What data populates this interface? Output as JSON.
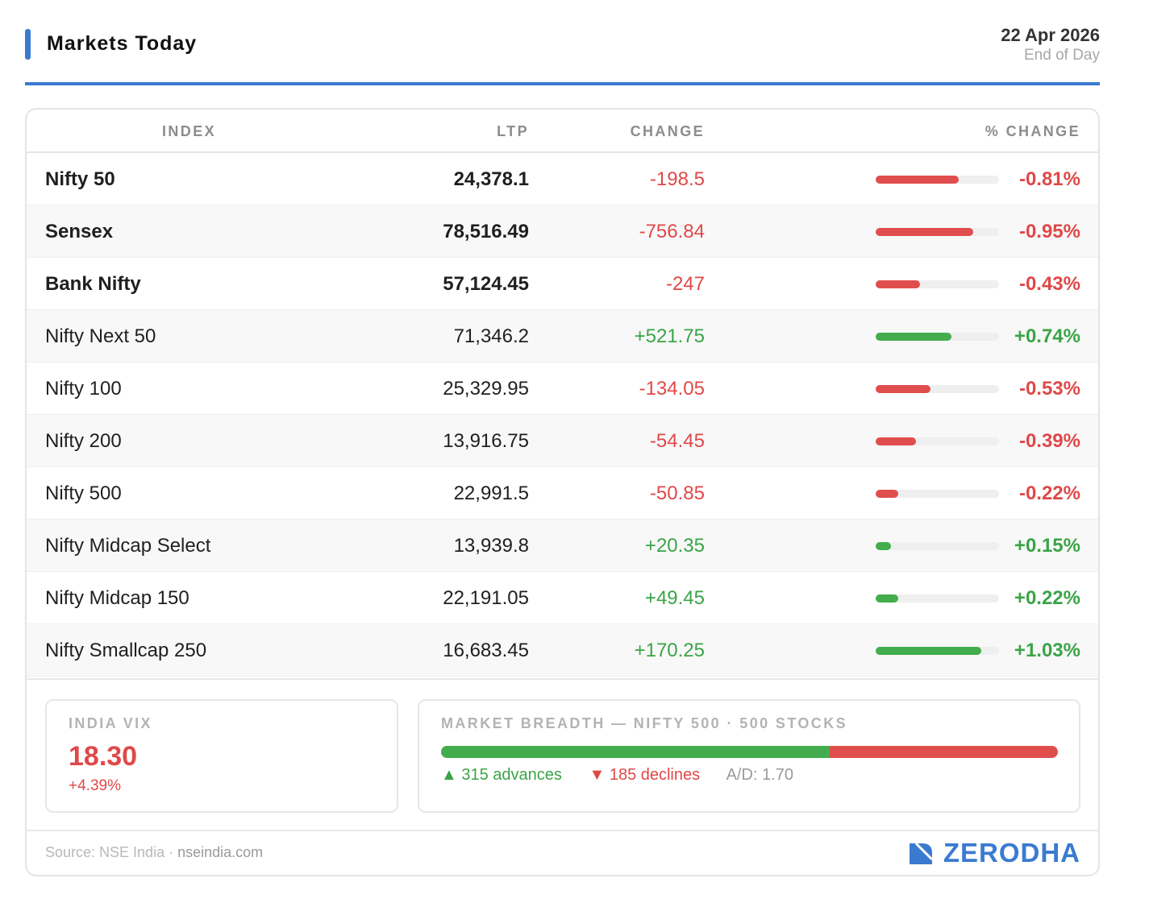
{
  "header": {
    "title": "Markets Today",
    "date": "22 Apr 2026",
    "subtitle": "End of Day",
    "accent_color": "#3a7bd0"
  },
  "table": {
    "columns": [
      "INDEX",
      "LTP",
      "CHANGE",
      "% CHANGE"
    ],
    "rows": [
      {
        "name": "Nifty 50",
        "ltp": "24,378.1",
        "change": "-198.5",
        "pct": "-0.81%",
        "pct_value": -0.81,
        "direction": "neg",
        "bold": true
      },
      {
        "name": "Sensex",
        "ltp": "78,516.49",
        "change": "-756.84",
        "pct": "-0.95%",
        "pct_value": -0.95,
        "direction": "neg",
        "bold": true
      },
      {
        "name": "Bank Nifty",
        "ltp": "57,124.45",
        "change": "-247",
        "pct": "-0.43%",
        "pct_value": -0.43,
        "direction": "neg",
        "bold": true
      },
      {
        "name": "Nifty Next 50",
        "ltp": "71,346.2",
        "change": "+521.75",
        "pct": "+0.74%",
        "pct_value": 0.74,
        "direction": "pos",
        "bold": false
      },
      {
        "name": "Nifty 100",
        "ltp": "25,329.95",
        "change": "-134.05",
        "pct": "-0.53%",
        "pct_value": -0.53,
        "direction": "neg",
        "bold": false
      },
      {
        "name": "Nifty 200",
        "ltp": "13,916.75",
        "change": "-54.45",
        "pct": "-0.39%",
        "pct_value": -0.39,
        "direction": "neg",
        "bold": false
      },
      {
        "name": "Nifty 500",
        "ltp": "22,991.5",
        "change": "-50.85",
        "pct": "-0.22%",
        "pct_value": -0.22,
        "direction": "neg",
        "bold": false
      },
      {
        "name": "Nifty Midcap Select",
        "ltp": "13,939.8",
        "change": "+20.35",
        "pct": "+0.15%",
        "pct_value": 0.15,
        "direction": "pos",
        "bold": false
      },
      {
        "name": "Nifty Midcap 150",
        "ltp": "22,191.05",
        "change": "+49.45",
        "pct": "+0.22%",
        "pct_value": 0.22,
        "direction": "pos",
        "bold": false
      },
      {
        "name": "Nifty Smallcap 250",
        "ltp": "16,683.45",
        "change": "+170.25",
        "pct": "+1.03%",
        "pct_value": 1.03,
        "direction": "pos",
        "bold": false
      }
    ]
  },
  "vix": {
    "label": "INDIA VIX",
    "value": "18.30",
    "change": "+4.39%"
  },
  "breadth": {
    "label": "MARKET BREADTH — NIFTY 500 · 500 STOCKS",
    "advances": 315,
    "declines": 185,
    "advances_text": "▲ 315 advances",
    "declines_text": "▼ 185 declines",
    "ad_ratio": "A/D: 1.70"
  },
  "footer": {
    "source_label": "Source: NSE India ·",
    "source_domain": "nseindia.com",
    "brand": "ZERODHA",
    "brand_icon": "zerodha-logo-icon"
  },
  "colors": {
    "negative": "#e04848",
    "positive": "#3aa447",
    "brand": "#3a7bd0"
  }
}
